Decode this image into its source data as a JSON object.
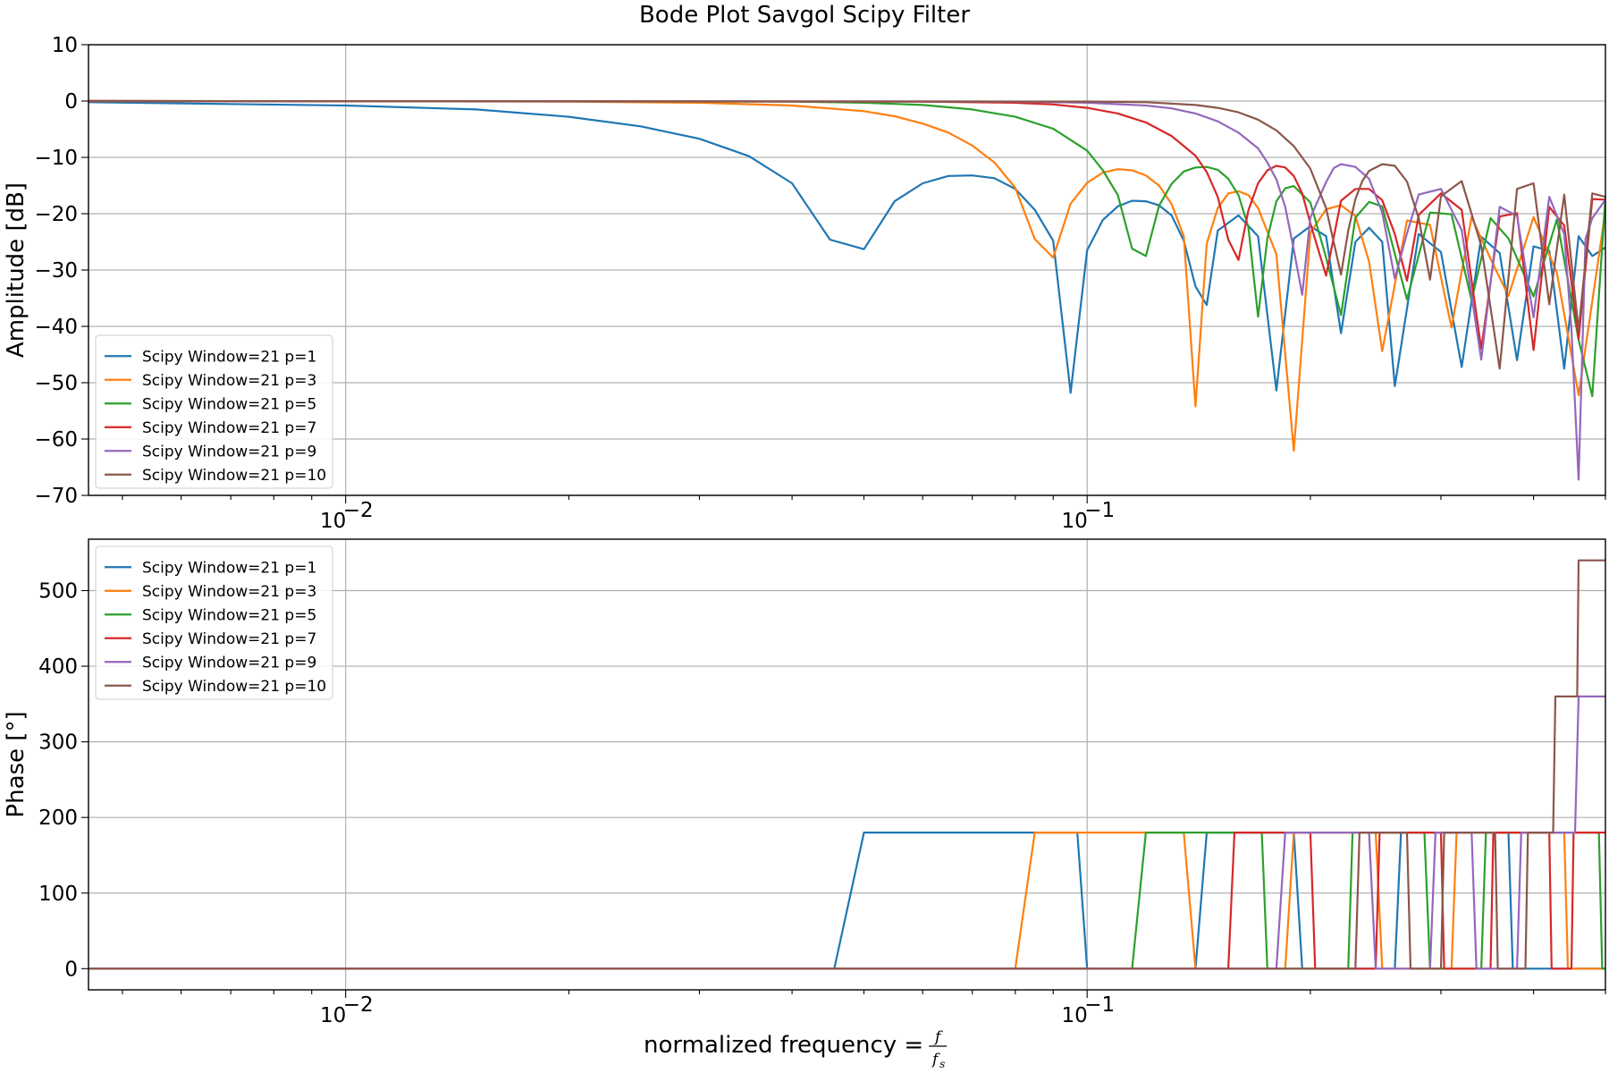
{
  "figure": {
    "title": "Bode Plot Savgol Scipy Filter",
    "xlabel_prefix": "normalized frequency = ",
    "xlabel_num": "f",
    "xlabel_den": "f",
    "xlabel_den_sub": "s"
  },
  "colors": {
    "p1": "#1f77b4",
    "p3": "#ff7f0e",
    "p5": "#2ca02c",
    "p7": "#d62728",
    "p9": "#9467bd",
    "p10": "#8c564b",
    "grid": "#b0b0b0"
  },
  "chart_data": [
    {
      "type": "line",
      "title": "Bode Plot Savgol Scipy Filter",
      "xlabel": "",
      "ylabel": "Amplitude [dB]",
      "xscale": "log",
      "xlim": [
        0.0045,
        0.5
      ],
      "ylim": [
        -70,
        10
      ],
      "yticks": [
        10,
        0,
        -10,
        -20,
        -30,
        -40,
        -50,
        -60,
        -70
      ],
      "ytick_labels": [
        "10",
        "0",
        "−10",
        "−20",
        "−30",
        "−40",
        "−50",
        "−60",
        "−70"
      ],
      "xticks": [
        0.01,
        0.1
      ],
      "xtick_labels": [
        {
          "base": "10",
          "exp": "−2"
        },
        {
          "base": "10",
          "exp": "−1"
        }
      ],
      "grid": true,
      "legend_position": "lower-left",
      "series": [
        {
          "name": "Scipy Window=21 p=1",
          "color": "#1f77b4",
          "x": [
            0.0045,
            0.01,
            0.015,
            0.02,
            0.025,
            0.03,
            0.035,
            0.04,
            0.045,
            0.05,
            0.055,
            0.06,
            0.065,
            0.07,
            0.075,
            0.08,
            0.085,
            0.09,
            0.095,
            0.1,
            0.105,
            0.11,
            0.115,
            0.12,
            0.125,
            0.13,
            0.135,
            0.14,
            0.145,
            0.15,
            0.16,
            0.17,
            0.18,
            0.19,
            0.2,
            0.21,
            0.22,
            0.23,
            0.24,
            0.25,
            0.26,
            0.28,
            0.3,
            0.32,
            0.34,
            0.36,
            0.38,
            0.4,
            0.42,
            0.44,
            0.46,
            0.48,
            0.5
          ],
          "y": [
            -0.2,
            -0.8,
            -1.5,
            -2.8,
            -4.5,
            -6.7,
            -9.8,
            -14.6,
            -24.6,
            -26.3,
            -17.8,
            -14.6,
            -13.3,
            -13.2,
            -13.7,
            -15.6,
            -19.3,
            -24.8,
            -51.8,
            -26.5,
            -21.1,
            -18.7,
            -17.7,
            -17.8,
            -18.5,
            -20.3,
            -24.8,
            -32.9,
            -36.2,
            -23,
            -20.3,
            -24,
            -51.4,
            -24.4,
            -22.2,
            -24,
            -41.2,
            -25,
            -22.5,
            -25,
            -50.6,
            -23.6,
            -26.8,
            -47.2,
            -24.1,
            -27,
            -46,
            -25.8,
            -26.6,
            -47.5,
            -24,
            -27.5,
            -26
          ]
        },
        {
          "name": "Scipy Window=21 p=3",
          "color": "#ff7f0e",
          "x": [
            0.0045,
            0.02,
            0.03,
            0.04,
            0.05,
            0.055,
            0.06,
            0.065,
            0.07,
            0.075,
            0.08,
            0.085,
            0.09,
            0.095,
            0.1,
            0.105,
            0.11,
            0.115,
            0.12,
            0.125,
            0.13,
            0.135,
            0.14,
            0.145,
            0.15,
            0.155,
            0.16,
            0.165,
            0.17,
            0.18,
            0.19,
            0.2,
            0.21,
            0.22,
            0.23,
            0.24,
            0.25,
            0.27,
            0.29,
            0.31,
            0.33,
            0.35,
            0.37,
            0.4,
            0.43,
            0.46,
            0.5
          ],
          "y": [
            0,
            -0.1,
            -0.3,
            -0.8,
            -1.8,
            -2.7,
            -4,
            -5.6,
            -7.9,
            -10.9,
            -15.4,
            -24.5,
            -27.8,
            -18.2,
            -14.5,
            -12.7,
            -12.1,
            -12.3,
            -13.2,
            -15,
            -18.3,
            -24,
            -54.2,
            -25.3,
            -19,
            -16.4,
            -16,
            -16.7,
            -19,
            -27.2,
            -62.1,
            -23.4,
            -19.2,
            -18.5,
            -20.4,
            -28.5,
            -44.4,
            -21.2,
            -22,
            -40.2,
            -20.6,
            -28,
            -34.6,
            -20.6,
            -30.5,
            -52.2,
            -19.5
          ]
        },
        {
          "name": "Scipy Window=21 p=5",
          "color": "#2ca02c",
          "x": [
            0.0045,
            0.04,
            0.05,
            0.06,
            0.07,
            0.08,
            0.09,
            0.1,
            0.105,
            0.11,
            0.115,
            0.12,
            0.125,
            0.13,
            0.135,
            0.14,
            0.145,
            0.15,
            0.155,
            0.16,
            0.165,
            0.17,
            0.175,
            0.18,
            0.185,
            0.19,
            0.2,
            0.21,
            0.22,
            0.23,
            0.24,
            0.25,
            0.27,
            0.29,
            0.31,
            0.33,
            0.35,
            0.37,
            0.4,
            0.43,
            0.46,
            0.48,
            0.5
          ],
          "y": [
            0,
            -0.1,
            -0.3,
            -0.7,
            -1.5,
            -2.8,
            -4.9,
            -8.8,
            -12.3,
            -16.7,
            -26.2,
            -27.5,
            -18.6,
            -14.7,
            -12.5,
            -11.8,
            -11.7,
            -12.2,
            -13.8,
            -16.7,
            -22.4,
            -38.3,
            -24.4,
            -17.8,
            -15.5,
            -15.1,
            -18,
            -27.8,
            -38,
            -20.7,
            -17.9,
            -18.7,
            -35.2,
            -19.8,
            -20.1,
            -35.4,
            -20.8,
            -24.4,
            -34.7,
            -21,
            -42.4,
            -52.4,
            -17.1
          ]
        },
        {
          "name": "Scipy Window=21 p=7",
          "color": "#d62728",
          "x": [
            0.0045,
            0.06,
            0.08,
            0.09,
            0.1,
            0.11,
            0.12,
            0.13,
            0.14,
            0.145,
            0.15,
            0.155,
            0.16,
            0.165,
            0.17,
            0.175,
            0.18,
            0.185,
            0.19,
            0.195,
            0.2,
            0.21,
            0.22,
            0.23,
            0.24,
            0.25,
            0.26,
            0.27,
            0.28,
            0.3,
            0.32,
            0.34,
            0.36,
            0.38,
            0.4,
            0.42,
            0.44,
            0.46,
            0.48,
            0.5
          ],
          "y": [
            0,
            -0.1,
            -0.3,
            -0.6,
            -1.2,
            -2.2,
            -3.8,
            -6.2,
            -9.7,
            -12.6,
            -17,
            -24.6,
            -28.2,
            -19.4,
            -14.6,
            -12.3,
            -11.5,
            -11.8,
            -13.3,
            -16.4,
            -21.7,
            -31,
            -17.7,
            -15.6,
            -15.6,
            -17.6,
            -23.6,
            -31.9,
            -20.2,
            -16.4,
            -19.3,
            -44,
            -20.5,
            -19.9,
            -44.2,
            -18.8,
            -22.1,
            -42.2,
            -17.4,
            -17.5
          ]
        },
        {
          "name": "Scipy Window=21 p=9",
          "color": "#9467bd",
          "x": [
            0.0045,
            0.08,
            0.1,
            0.12,
            0.13,
            0.14,
            0.15,
            0.16,
            0.17,
            0.175,
            0.18,
            0.185,
            0.19,
            0.195,
            0.2,
            0.21,
            0.215,
            0.22,
            0.23,
            0.24,
            0.25,
            0.26,
            0.27,
            0.28,
            0.3,
            0.32,
            0.34,
            0.36,
            0.38,
            0.4,
            0.42,
            0.44,
            0.45,
            0.46,
            0.47,
            0.48,
            0.5
          ],
          "y": [
            0,
            -0.1,
            -0.3,
            -0.8,
            -1.3,
            -2.2,
            -3.6,
            -5.6,
            -8.4,
            -10.9,
            -13.9,
            -18.8,
            -26.4,
            -34.4,
            -20.7,
            -14.4,
            -11.9,
            -11.2,
            -11.7,
            -13.8,
            -19.8,
            -31.5,
            -23.5,
            -16.6,
            -15.6,
            -22.9,
            -45.9,
            -18.8,
            -20.4,
            -38.4,
            -17,
            -23.6,
            -40.6,
            -67.2,
            -24.5,
            -20.8,
            -17.5
          ]
        },
        {
          "name": "Scipy Window=21 p=10",
          "color": "#8c564b",
          "x": [
            0.0045,
            0.1,
            0.12,
            0.14,
            0.15,
            0.16,
            0.17,
            0.18,
            0.19,
            0.2,
            0.21,
            0.22,
            0.225,
            0.23,
            0.235,
            0.24,
            0.25,
            0.26,
            0.27,
            0.28,
            0.29,
            0.3,
            0.32,
            0.34,
            0.36,
            0.38,
            0.4,
            0.42,
            0.44,
            0.46,
            0.48,
            0.5
          ],
          "y": [
            0,
            -0.1,
            -0.2,
            -0.7,
            -1.2,
            -2,
            -3.3,
            -5.2,
            -8,
            -12,
            -19,
            -30.8,
            -23,
            -17.4,
            -14.2,
            -12.4,
            -11.2,
            -11.5,
            -14.3,
            -20.8,
            -31.7,
            -16.9,
            -14.2,
            -25.7,
            -47.5,
            -15.6,
            -14.6,
            -36.1,
            -16.6,
            -40.7,
            -16.4,
            -17
          ]
        }
      ]
    },
    {
      "type": "line",
      "xlabel": "normalized frequency = f/f_s",
      "ylabel": "Phase [°]",
      "xscale": "log",
      "xlim": [
        0.0045,
        0.5
      ],
      "ylim": [
        -28,
        568
      ],
      "yticks": [
        500,
        400,
        300,
        200,
        100,
        0
      ],
      "ytick_labels": [
        "500",
        "400",
        "300",
        "200",
        "100",
        "0"
      ],
      "xticks": [
        0.01,
        0.1
      ],
      "xtick_labels": [
        {
          "base": "10",
          "exp": "−2"
        },
        {
          "base": "10",
          "exp": "−1"
        }
      ],
      "grid": true,
      "legend_position": "upper-left",
      "series": [
        {
          "name": "Scipy Window=21 p=1",
          "color": "#1f77b4",
          "x": [
            0.0045,
            0.0456,
            0.05,
            0.097,
            0.1,
            0.14,
            0.145,
            0.19,
            0.195,
            0.26,
            0.265,
            0.37,
            0.375,
            0.5
          ],
          "y": [
            0,
            0,
            180,
            180,
            0,
            0,
            180,
            180,
            0,
            0,
            180,
            180,
            0,
            0
          ]
        },
        {
          "name": "Scipy Window=21 p=3",
          "color": "#ff7f0e",
          "x": [
            0.0045,
            0.08,
            0.085,
            0.135,
            0.14,
            0.185,
            0.19,
            0.245,
            0.25,
            0.31,
            0.315,
            0.44,
            0.445,
            0.5
          ],
          "y": [
            0,
            0,
            180,
            180,
            0,
            0,
            180,
            180,
            0,
            0,
            180,
            180,
            0,
            0
          ]
        },
        {
          "name": "Scipy Window=21 p=5",
          "color": "#2ca02c",
          "x": [
            0.0045,
            0.115,
            0.12,
            0.172,
            0.175,
            0.225,
            0.228,
            0.285,
            0.29,
            0.34,
            0.345,
            0.49,
            0.495,
            0.5
          ],
          "y": [
            0,
            0,
            180,
            180,
            0,
            0,
            180,
            180,
            0,
            0,
            180,
            180,
            0,
            0
          ]
        },
        {
          "name": "Scipy Window=21 p=7",
          "color": "#d62728",
          "x": [
            0.0045,
            0.155,
            0.158,
            0.2,
            0.203,
            0.245,
            0.248,
            0.3,
            0.303,
            0.35,
            0.353,
            0.42,
            0.423,
            0.45,
            0.453,
            0.5
          ],
          "y": [
            0,
            0,
            180,
            180,
            0,
            0,
            180,
            180,
            0,
            0,
            180,
            180,
            0,
            0,
            180,
            180
          ]
        },
        {
          "name": "Scipy Window=21 p=9",
          "color": "#9467bd",
          "x": [
            0.0045,
            0.18,
            0.185,
            0.24,
            0.245,
            0.29,
            0.295,
            0.33,
            0.335,
            0.38,
            0.385,
            0.455,
            0.46,
            0.462,
            0.5
          ],
          "y": [
            0,
            0,
            180,
            180,
            0,
            0,
            180,
            180,
            0,
            0,
            180,
            180,
            360,
            360,
            360
          ]
        },
        {
          "name": "Scipy Window=21 p=10",
          "color": "#8c564b",
          "x": [
            0.0045,
            0.23,
            0.233,
            0.27,
            0.273,
            0.3,
            0.303,
            0.355,
            0.358,
            0.39,
            0.393,
            0.425,
            0.428,
            0.458,
            0.46,
            0.5
          ],
          "y": [
            0,
            0,
            180,
            180,
            0,
            0,
            180,
            180,
            0,
            0,
            180,
            180,
            360,
            360,
            540,
            540
          ]
        }
      ]
    }
  ]
}
